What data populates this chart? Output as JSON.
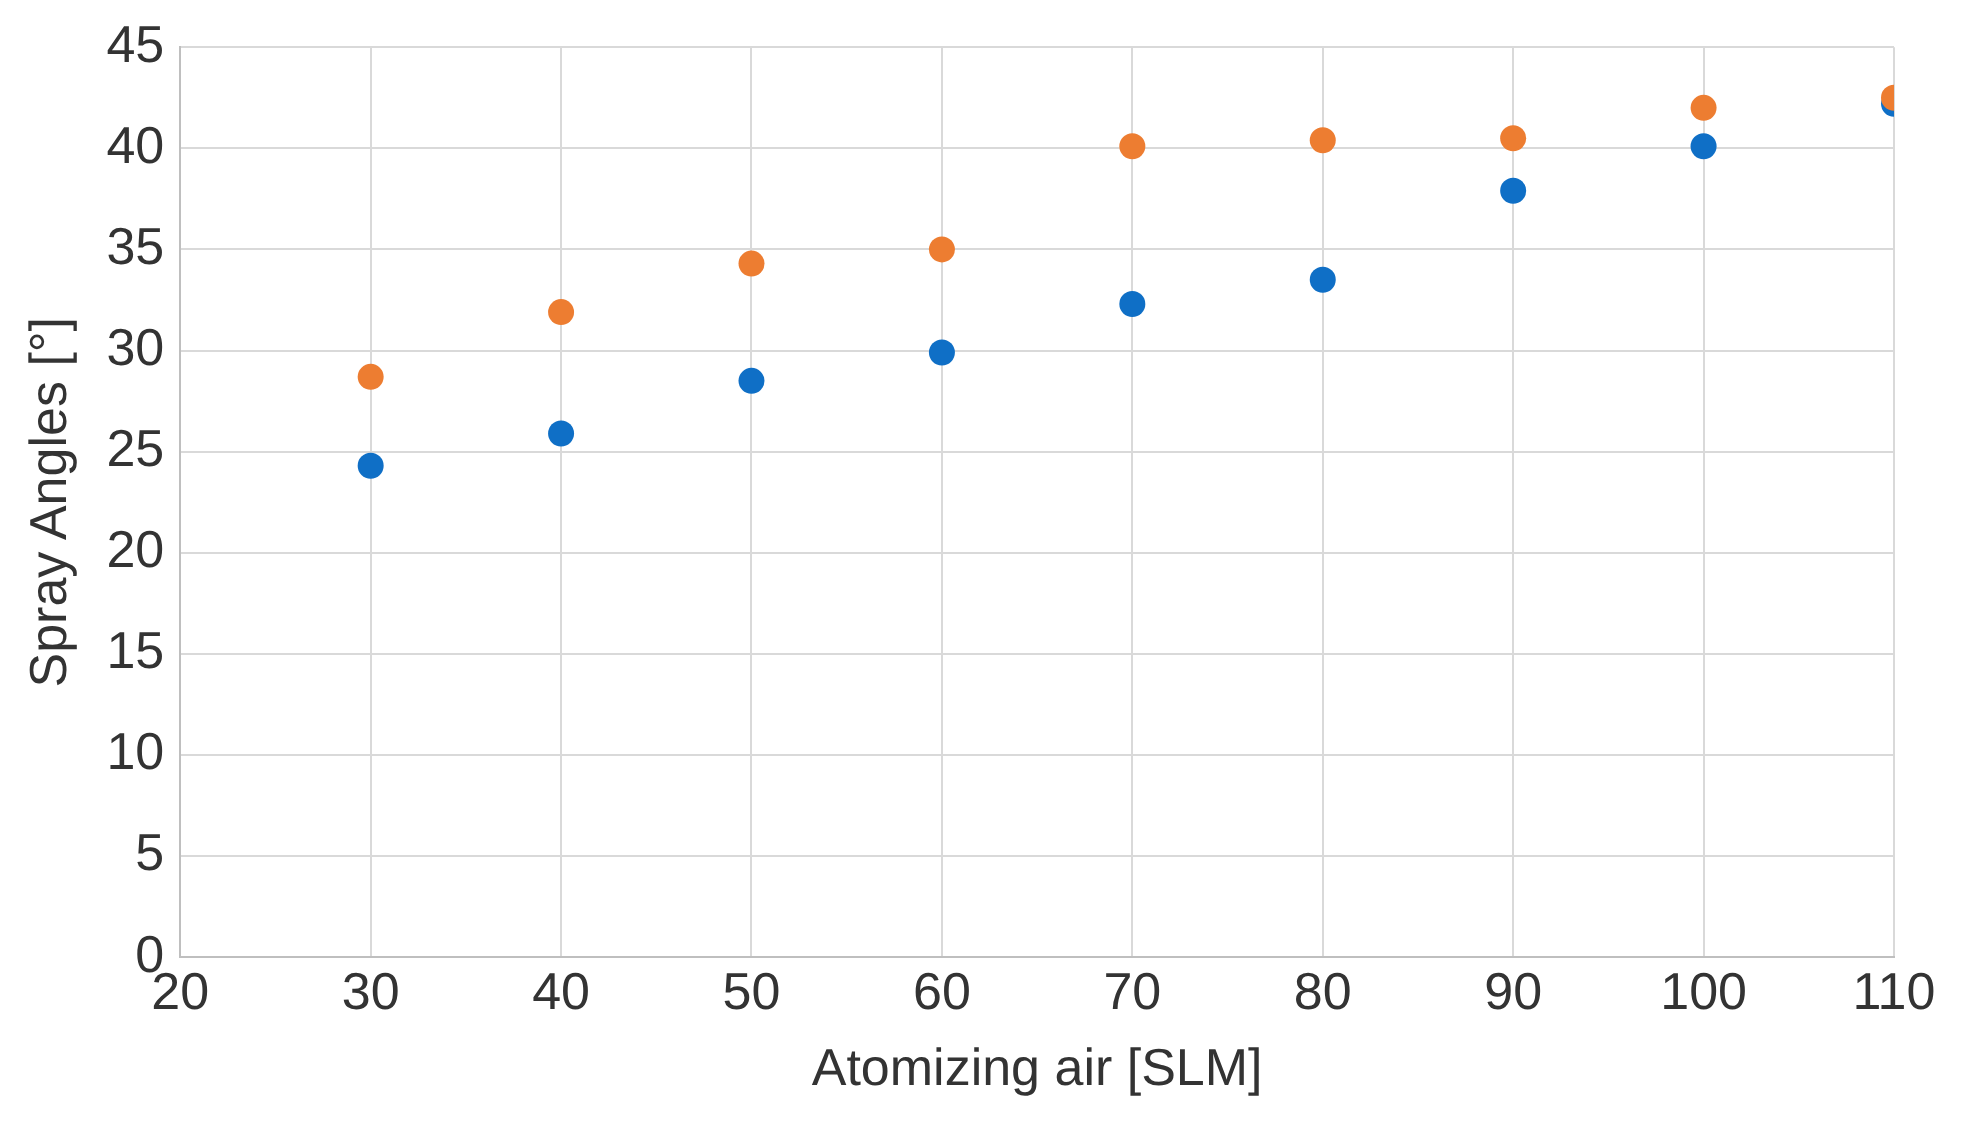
{
  "chart_data": {
    "type": "scatter",
    "xlabel": "Atomizing air [SLM]",
    "ylabel": "Spray Angles [°]",
    "x": [
      30,
      40,
      50,
      60,
      70,
      80,
      90,
      100,
      110
    ],
    "series": [
      {
        "color": "#0f6fc6",
        "values": [
          24.3,
          25.9,
          28.5,
          29.9,
          32.3,
          33.5,
          37.9,
          40.1,
          42.2
        ]
      },
      {
        "color": "#ed7d31",
        "values": [
          28.7,
          31.9,
          34.3,
          35.0,
          40.1,
          40.4,
          40.5,
          42.0,
          42.5
        ]
      }
    ],
    "xlim": [
      20,
      110
    ],
    "xticks": [
      20,
      30,
      40,
      50,
      60,
      70,
      80,
      90,
      100,
      110
    ],
    "ylim": [
      0,
      45
    ],
    "yticks": [
      0,
      5,
      10,
      15,
      20,
      25,
      30,
      35,
      40,
      45
    ],
    "grid": true,
    "marker": "circle"
  }
}
